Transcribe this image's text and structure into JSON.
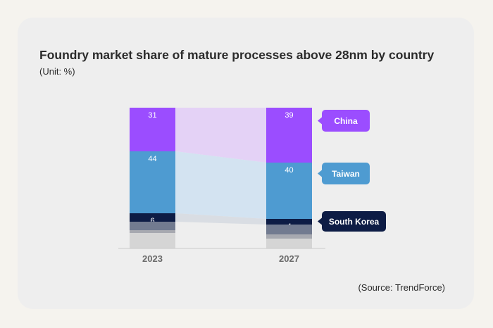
{
  "title": "Foundry market share of mature processes above 28nm by country",
  "unit": "(Unit: %)",
  "source": "(Source: TrendForce)",
  "chart_data": {
    "type": "bar",
    "stacked": true,
    "normalized_to": 100,
    "categories": [
      "2023",
      "2027"
    ],
    "series": [
      {
        "name": "China",
        "values": [
          31,
          39
        ],
        "color": "#9b4dff",
        "labeled": true
      },
      {
        "name": "Taiwan",
        "values": [
          44,
          40
        ],
        "color": "#4e9bd1",
        "labeled": true
      },
      {
        "name": "South Korea",
        "values": [
          6,
          4
        ],
        "color": "#0d1c45",
        "labeled": true
      },
      {
        "name": "",
        "values": [
          6,
          7
        ],
        "color": "#727b90",
        "labeled": false
      },
      {
        "name": "",
        "values": [
          2,
          3
        ],
        "color": "#a7a9b0",
        "labeled": false
      },
      {
        "name": "",
        "values": [
          11,
          7
        ],
        "color": "#d5d5d5",
        "labeled": false
      }
    ],
    "legend": [
      {
        "name": "China",
        "color": "#9b4dff",
        "text_color": "#ffffff"
      },
      {
        "name": "Taiwan",
        "color": "#4e9bd1",
        "text_color": "#ffffff"
      },
      {
        "name": "South Korea",
        "color": "#0d1c45",
        "text_color": "#ffffff"
      }
    ],
    "band_colors": [
      "#e4d2f6",
      "#d3e3f1",
      "#d9dde3"
    ],
    "legend_placement": "right"
  }
}
